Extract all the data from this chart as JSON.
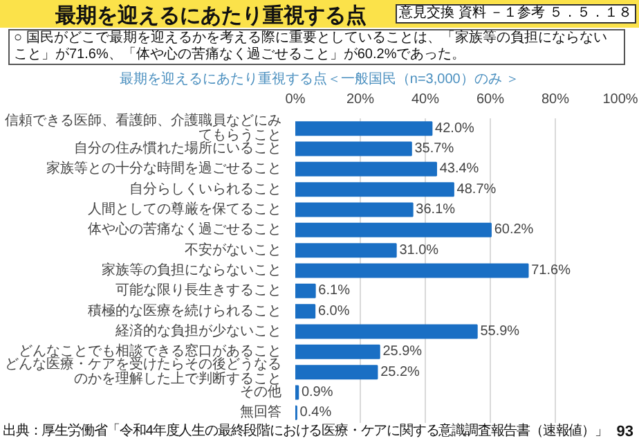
{
  "chart_data": {
    "type": "bar",
    "orientation": "horizontal",
    "title": "最期を迎えるにあたり重視する点",
    "subtitle": "最期を迎えるにあたり重視する点＜一般国民（n=3,000）のみ ＞",
    "categories": [
      "信頼できる医師、看護師、介護職員などにみてもらうこと",
      "自分の住み慣れた場所にいること",
      "家族等との十分な時間を過ごせること",
      "自分らしくいられること",
      "人間としての尊厳を保てること",
      "体や心の苦痛なく過ごせること",
      "不安がないこと",
      "家族等の負担にならないこと",
      "可能な限り長生きすること",
      "積極的な医療を続けられること",
      "経済的な負担が少ないこと",
      "どんなことでも相談できる窓口があること",
      "どんな医療・ケアを受けたらその後どうなるのかを理解した上で判断すること",
      "その他",
      "無回答"
    ],
    "values": [
      42.0,
      35.7,
      43.4,
      48.7,
      36.1,
      60.2,
      31.0,
      71.6,
      6.1,
      6.0,
      55.9,
      25.9,
      25.2,
      0.9,
      0.4
    ],
    "value_labels": [
      "42.0%",
      "35.7%",
      "43.4%",
      "48.7%",
      "36.1%",
      "60.2%",
      "31.0%",
      "71.6%",
      "6.1%",
      "6.0%",
      "55.9%",
      "25.9%",
      "25.2%",
      "0.9%",
      "0.4%"
    ],
    "color": "#1a6fc4",
    "xlim": [
      0,
      100
    ],
    "xticks": [
      {
        "value": 0,
        "label": "0%"
      },
      {
        "value": 20,
        "label": "20%"
      },
      {
        "value": 40,
        "label": "40%"
      },
      {
        "value": 60,
        "label": "60%"
      },
      {
        "value": 80,
        "label": "80%"
      },
      {
        "value": 100,
        "label": "100%"
      }
    ],
    "grid": "x",
    "annotations": [
      "意見交換 資料 －１参考 ５．５．１８",
      "○ 国民がどこで最期を迎えるかを考える際に重要としていることは、「家族等の負担にならないこと」が71.6%、「体や心の苦痛なく過ごせること」が60.2%であった。",
      "出典：厚生労働省「令和4年度人生の最終段階における医療・ケアに関する意識調査報告書（速報値）」",
      "93"
    ]
  }
}
